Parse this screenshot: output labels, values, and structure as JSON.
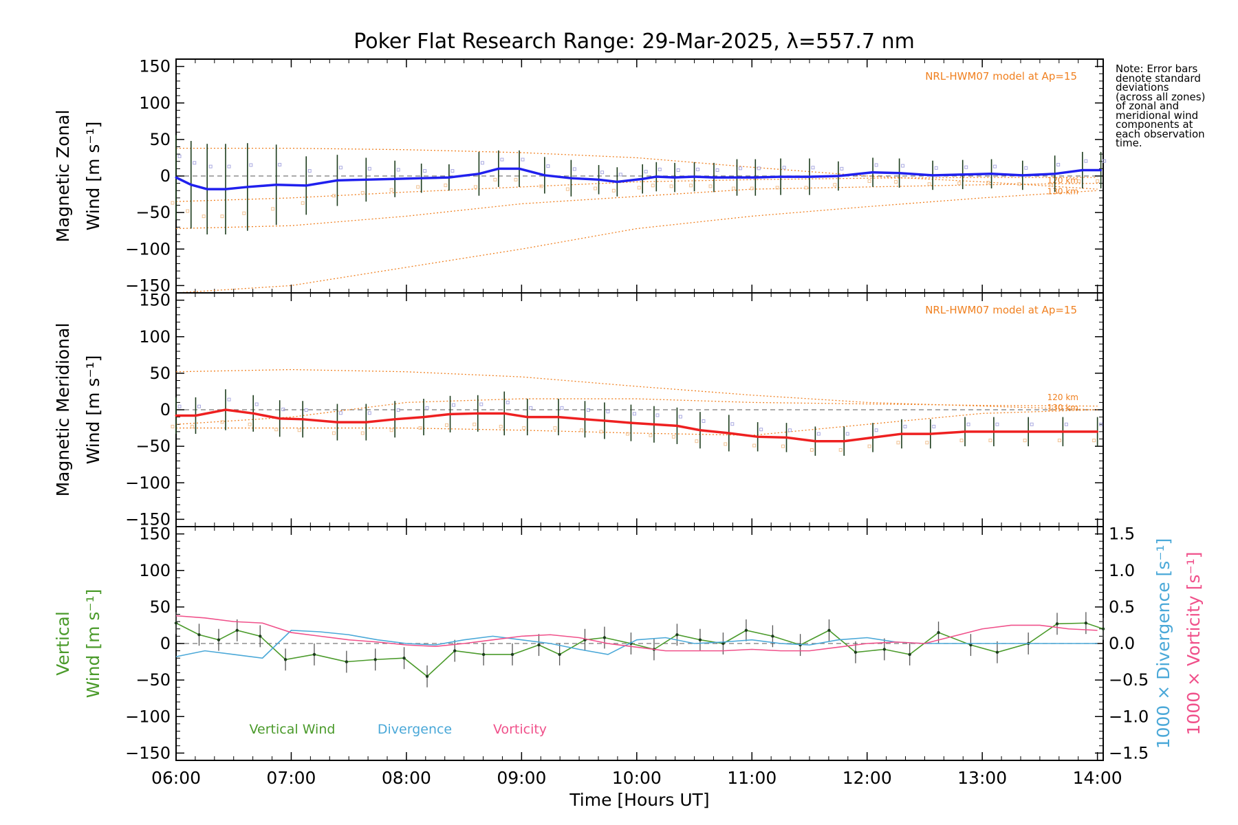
{
  "title": "Poker Flat Research Range: 29-Mar-2025, λ=557.7 nm",
  "note_lines": [
    "Note: Error bars",
    "denote standard",
    "deviations",
    "(across all zones)",
    "of zonal and",
    "meridional wind",
    "components at",
    "each observation",
    "time."
  ],
  "colors": {
    "zonal": "#2020ee",
    "meridional": "#ee2020",
    "vertical": "#4a9a2a",
    "divergence": "#4aa8d8",
    "vorticity": "#f0508a",
    "model": "#f08020"
  },
  "chart_data": [
    {
      "id": "zonal",
      "type": "line",
      "ylabel_lines": [
        "Magnetic Zonal",
        "Wind [m s⁻¹]"
      ],
      "ylim": [
        -160,
        160
      ],
      "yticks": [
        -150,
        -100,
        -50,
        0,
        50,
        100,
        150
      ],
      "annotation": "NRL-HWM07 model at Ap=15",
      "model_labels": [
        "120 km",
        "130 km"
      ],
      "x": [
        6.0,
        6.13,
        6.27,
        6.43,
        6.62,
        6.87,
        7.13,
        7.4,
        7.65,
        7.9,
        8.13,
        8.37,
        8.63,
        8.8,
        8.98,
        9.2,
        9.43,
        9.67,
        9.83,
        10.05,
        10.17,
        10.33,
        10.5,
        10.67,
        10.87,
        11.03,
        11.25,
        11.5,
        11.75,
        12.05,
        12.28,
        12.57,
        12.83,
        13.08,
        13.35,
        13.63,
        13.87,
        14.03
      ],
      "values": [
        -2,
        -12,
        -18,
        -18,
        -15,
        -12,
        -13,
        -6,
        -5,
        -4,
        -3,
        -2,
        3,
        10,
        10,
        1,
        -3,
        -5,
        -8,
        -4,
        -1,
        -2,
        -1,
        -2,
        -2,
        -2,
        -1,
        -1,
        0,
        5,
        4,
        1,
        2,
        3,
        1,
        3,
        8,
        8
      ],
      "errors": [
        58,
        60,
        62,
        62,
        60,
        55,
        40,
        35,
        30,
        25,
        20,
        18,
        30,
        25,
        25,
        25,
        25,
        20,
        20,
        20,
        20,
        20,
        20,
        20,
        25,
        25,
        25,
        25,
        20,
        20,
        20,
        20,
        20,
        20,
        20,
        25,
        25,
        25
      ],
      "model_curves": [
        {
          "x": [
            6,
            7,
            8,
            9,
            10,
            11,
            12,
            13,
            14
          ],
          "y": [
            38,
            38,
            36,
            32,
            25,
            12,
            0,
            -8,
            -18
          ]
        },
        {
          "x": [
            6,
            7,
            8,
            9,
            10,
            11,
            12,
            13,
            14
          ],
          "y": [
            -72,
            -68,
            -55,
            -38,
            -28,
            -18,
            -15,
            -12,
            -10
          ]
        },
        {
          "x": [
            6,
            7,
            8,
            9,
            10,
            11,
            12,
            13,
            14
          ],
          "y": [
            -160,
            -150,
            -125,
            -100,
            -72,
            -55,
            -42,
            -30,
            -20
          ]
        },
        {
          "x": [
            6,
            7,
            8,
            9,
            10,
            11,
            12,
            13,
            14
          ],
          "y": [
            -35,
            -30,
            -22,
            -15,
            -8,
            -5,
            -3,
            -2,
            -2
          ]
        }
      ]
    },
    {
      "id": "meridional",
      "type": "line",
      "ylabel_lines": [
        "Magnetic Meridional",
        "Wind [m s⁻¹]"
      ],
      "ylim": [
        -160,
        160
      ],
      "yticks": [
        -150,
        -100,
        -50,
        0,
        50,
        100,
        150
      ],
      "annotation": "NRL-HWM07 model at Ap=15",
      "model_labels": [
        "120 km",
        "130 km"
      ],
      "x": [
        6.0,
        6.17,
        6.43,
        6.67,
        6.9,
        7.1,
        7.4,
        7.65,
        7.9,
        8.15,
        8.38,
        8.62,
        8.85,
        9.05,
        9.32,
        9.55,
        9.72,
        9.95,
        10.15,
        10.35,
        10.55,
        10.8,
        11.05,
        11.3,
        11.55,
        11.8,
        12.05,
        12.3,
        12.55,
        12.85,
        13.1,
        13.4,
        13.7,
        14.0
      ],
      "values": [
        -8,
        -8,
        0,
        -5,
        -12,
        -13,
        -17,
        -17,
        -13,
        -10,
        -6,
        -5,
        -5,
        -10,
        -10,
        -13,
        -15,
        -18,
        -20,
        -22,
        -28,
        -32,
        -37,
        -38,
        -43,
        -43,
        -38,
        -33,
        -33,
        -30,
        -30,
        -30,
        -30,
        -30
      ],
      "errors": [
        25,
        25,
        28,
        25,
        25,
        25,
        25,
        25,
        25,
        25,
        25,
        25,
        30,
        25,
        25,
        25,
        25,
        25,
        25,
        25,
        25,
        25,
        20,
        20,
        20,
        20,
        20,
        20,
        20,
        20,
        20,
        20,
        20,
        20
      ],
      "model_curves": [
        {
          "x": [
            6,
            7,
            8,
            9,
            10,
            11,
            12,
            13,
            14
          ],
          "y": [
            52,
            55,
            52,
            45,
            32,
            20,
            10,
            5,
            0
          ]
        },
        {
          "x": [
            6,
            7,
            8,
            9,
            10,
            11,
            12,
            13,
            14
          ],
          "y": [
            -20,
            -10,
            10,
            15,
            15,
            10,
            8,
            6,
            5
          ]
        },
        {
          "x": [
            6,
            7,
            8,
            9,
            10,
            11,
            12,
            13,
            14
          ],
          "y": [
            -25,
            -25,
            -25,
            -28,
            -32,
            -35,
            -20,
            -5,
            0
          ]
        }
      ]
    },
    {
      "id": "vertical",
      "type": "line",
      "ylabel_lines": [
        "Vertical",
        "Wind [m s⁻¹]"
      ],
      "ylim": [
        -160,
        160
      ],
      "yticks": [
        -150,
        -100,
        -50,
        0,
        50,
        100,
        150
      ],
      "y2label_lines": [
        "1000 × Divergence [s⁻¹]",
        "1000 × Vorticity [s⁻¹]"
      ],
      "y2lim": [
        -1.6,
        1.6
      ],
      "y2ticks": [
        -1.5,
        -1.0,
        -0.5,
        0.0,
        0.5,
        1.0,
        1.5
      ],
      "y2ticklabels": [
        "−1.5",
        "−1.0",
        "−0.5",
        "0.0",
        "0.5",
        "1.0",
        "1.5"
      ],
      "xticks": [
        6,
        7,
        8,
        9,
        10,
        11,
        12,
        13,
        14
      ],
      "xticklabels": [
        "06:00",
        "07:00",
        "08:00",
        "09:00",
        "10:00",
        "11:00",
        "12:00",
        "13:00",
        "14:00"
      ],
      "xlabel": "Time [Hours UT]",
      "xlim": [
        6.0,
        14.05
      ],
      "legend": [
        "Vertical Wind",
        "Divergence",
        "Vorticity"
      ],
      "series": [
        {
          "name": "Vertical Wind",
          "axis": "left",
          "x": [
            6.0,
            6.2,
            6.37,
            6.53,
            6.73,
            6.95,
            7.2,
            7.48,
            7.73,
            7.98,
            8.18,
            8.42,
            8.67,
            8.92,
            9.15,
            9.33,
            9.55,
            9.72,
            9.95,
            10.15,
            10.35,
            10.55,
            10.75,
            10.95,
            11.18,
            11.42,
            11.67,
            11.9,
            12.15,
            12.37,
            12.62,
            12.9,
            13.13,
            13.4,
            13.65,
            13.9,
            14.05
          ],
          "y": [
            28,
            12,
            5,
            18,
            10,
            -22,
            -15,
            -25,
            -22,
            -20,
            -45,
            -10,
            -15,
            -15,
            -2,
            -15,
            5,
            8,
            0,
            -8,
            12,
            5,
            0,
            18,
            10,
            -2,
            18,
            -12,
            -8,
            -15,
            15,
            -2,
            -12,
            0,
            27,
            28,
            20
          ],
          "errors": [
            15,
            15,
            15,
            15,
            15,
            15,
            15,
            15,
            15,
            15,
            15,
            15,
            15,
            15,
            15,
            15,
            15,
            15,
            15,
            15,
            15,
            15,
            15,
            15,
            15,
            15,
            15,
            15,
            15,
            15,
            15,
            15,
            15,
            15,
            15,
            15,
            15
          ]
        },
        {
          "name": "Divergence",
          "axis": "right",
          "x": [
            6.0,
            6.25,
            6.5,
            6.75,
            7.0,
            7.25,
            7.5,
            7.75,
            8.0,
            8.25,
            8.5,
            8.75,
            9.0,
            9.25,
            9.5,
            9.75,
            10.0,
            10.25,
            10.5,
            10.75,
            11.0,
            11.25,
            11.5,
            11.75,
            12.0,
            12.25,
            12.5,
            12.75,
            13.0,
            13.25,
            13.5,
            13.75,
            14.0
          ],
          "y": [
            -0.18,
            -0.1,
            -0.15,
            -0.2,
            0.18,
            0.16,
            0.12,
            0.05,
            0.0,
            -0.02,
            0.05,
            0.1,
            0.05,
            0.0,
            -0.08,
            -0.15,
            0.05,
            0.08,
            0.0,
            0.02,
            0.05,
            0.0,
            -0.02,
            0.05,
            0.08,
            0.02,
            0.0,
            0.0,
            0.0,
            0.0,
            0.0,
            0.0,
            0.0
          ]
        },
        {
          "name": "Vorticity",
          "axis": "right",
          "x": [
            6.0,
            6.25,
            6.5,
            6.75,
            7.0,
            7.25,
            7.5,
            7.75,
            8.0,
            8.25,
            8.5,
            8.75,
            9.0,
            9.25,
            9.5,
            9.75,
            10.0,
            10.25,
            10.5,
            10.75,
            11.0,
            11.25,
            11.5,
            11.75,
            12.0,
            12.25,
            12.5,
            12.75,
            13.0,
            13.25,
            13.5,
            13.75,
            14.0
          ],
          "y": [
            0.38,
            0.35,
            0.3,
            0.28,
            0.15,
            0.1,
            0.05,
            0.02,
            -0.02,
            -0.04,
            0.0,
            0.05,
            0.1,
            0.12,
            0.08,
            0.0,
            -0.05,
            -0.1,
            -0.1,
            -0.1,
            -0.08,
            -0.1,
            -0.1,
            -0.05,
            0.0,
            0.02,
            0.0,
            0.1,
            0.2,
            0.25,
            0.25,
            0.2,
            0.18
          ]
        }
      ]
    }
  ]
}
